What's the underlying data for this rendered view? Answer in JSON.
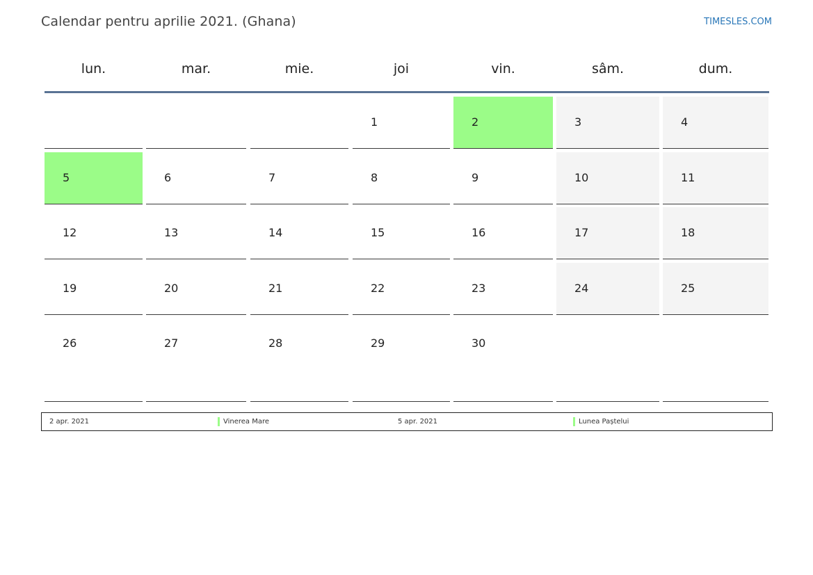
{
  "header": {
    "title": "Calendar pentru aprilie 2021. (Ghana)",
    "brand": "TIMESLES.COM"
  },
  "colors": {
    "holiday": "#9bfc88",
    "weekend": "#f4f4f4",
    "rule": "#5a7394",
    "brand": "#2a77b8"
  },
  "weekdays": [
    "lun.",
    "mar.",
    "mie.",
    "joi",
    "vin.",
    "sâm.",
    "dum."
  ],
  "weeks": [
    [
      {
        "day": "",
        "weekend": false,
        "holiday": false
      },
      {
        "day": "",
        "weekend": false,
        "holiday": false
      },
      {
        "day": "",
        "weekend": false,
        "holiday": false
      },
      {
        "day": "1",
        "weekend": false,
        "holiday": false
      },
      {
        "day": "2",
        "weekend": false,
        "holiday": true
      },
      {
        "day": "3",
        "weekend": true,
        "holiday": false
      },
      {
        "day": "4",
        "weekend": true,
        "holiday": false
      }
    ],
    [
      {
        "day": "5",
        "weekend": false,
        "holiday": true
      },
      {
        "day": "6",
        "weekend": false,
        "holiday": false
      },
      {
        "day": "7",
        "weekend": false,
        "holiday": false
      },
      {
        "day": "8",
        "weekend": false,
        "holiday": false
      },
      {
        "day": "9",
        "weekend": false,
        "holiday": false
      },
      {
        "day": "10",
        "weekend": true,
        "holiday": false
      },
      {
        "day": "11",
        "weekend": true,
        "holiday": false
      }
    ],
    [
      {
        "day": "12",
        "weekend": false,
        "holiday": false
      },
      {
        "day": "13",
        "weekend": false,
        "holiday": false
      },
      {
        "day": "14",
        "weekend": false,
        "holiday": false
      },
      {
        "day": "15",
        "weekend": false,
        "holiday": false
      },
      {
        "day": "16",
        "weekend": false,
        "holiday": false
      },
      {
        "day": "17",
        "weekend": true,
        "holiday": false
      },
      {
        "day": "18",
        "weekend": true,
        "holiday": false
      }
    ],
    [
      {
        "day": "19",
        "weekend": false,
        "holiday": false
      },
      {
        "day": "20",
        "weekend": false,
        "holiday": false
      },
      {
        "day": "21",
        "weekend": false,
        "holiday": false
      },
      {
        "day": "22",
        "weekend": false,
        "holiday": false
      },
      {
        "day": "23",
        "weekend": false,
        "holiday": false
      },
      {
        "day": "24",
        "weekend": true,
        "holiday": false
      },
      {
        "day": "25",
        "weekend": true,
        "holiday": false
      }
    ],
    [
      {
        "day": "26",
        "weekend": false,
        "holiday": false
      },
      {
        "day": "27",
        "weekend": false,
        "holiday": false
      },
      {
        "day": "28",
        "weekend": false,
        "holiday": false
      },
      {
        "day": "29",
        "weekend": false,
        "holiday": false
      },
      {
        "day": "30",
        "weekend": false,
        "holiday": false
      },
      {
        "day": "",
        "weekend": false,
        "holiday": false
      },
      {
        "day": "",
        "weekend": false,
        "holiday": false
      }
    ]
  ],
  "holidays": [
    {
      "date": "2 apr. 2021",
      "name": "Vinerea Mare"
    },
    {
      "date": "5 apr. 2021",
      "name": "Lunea Paștelui"
    }
  ]
}
